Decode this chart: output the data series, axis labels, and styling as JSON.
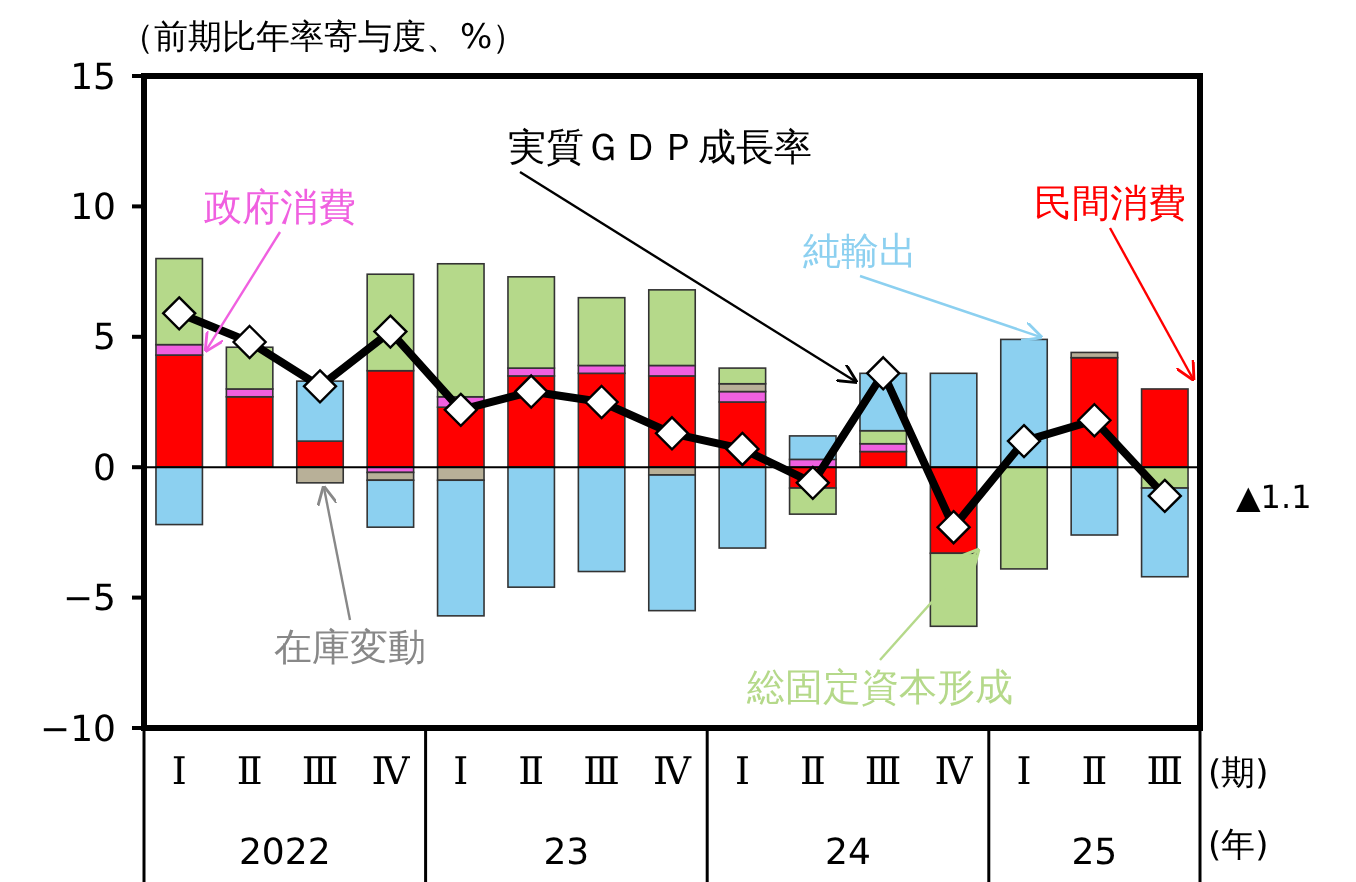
{
  "chart_data": {
    "type": "bar",
    "stacked": true,
    "ylabel": "（前期比年率寄与度、%）",
    "categories": [
      "Ⅰ",
      "Ⅱ",
      "Ⅲ",
      "Ⅳ",
      "Ⅰ",
      "Ⅱ",
      "Ⅲ",
      "Ⅳ",
      "Ⅰ",
      "Ⅱ",
      "Ⅲ",
      "Ⅳ",
      "Ⅰ",
      "Ⅱ",
      "Ⅲ"
    ],
    "series": [
      {
        "name": "民間消費",
        "color": "#ff0000",
        "values": [
          4.3,
          2.7,
          1.0,
          3.7,
          2.3,
          3.5,
          3.6,
          3.5,
          2.5,
          -0.8,
          0.6,
          -3.3,
          0,
          4.2,
          3.0
        ]
      },
      {
        "name": "政府消費",
        "color": "#f060e0",
        "values": [
          0.4,
          0.3,
          0,
          -0.2,
          0.4,
          0.3,
          0.3,
          0.4,
          0.4,
          0.3,
          0.3,
          0,
          0,
          0,
          0
        ]
      },
      {
        "name": "在庫変動",
        "color": "#b8b098",
        "values": [
          0,
          0,
          -0.6,
          -0.3,
          -0.5,
          0,
          0,
          -0.3,
          0.3,
          0,
          0,
          0,
          0,
          0.2,
          0
        ]
      },
      {
        "name": "総固定資本形成",
        "color": "#b5d98a",
        "values": [
          3.3,
          1.6,
          0,
          3.7,
          5.1,
          3.5,
          2.6,
          2.9,
          0.6,
          -1.0,
          0.5,
          -2.8,
          -3.9,
          0,
          -0.8
        ]
      },
      {
        "name": "純輸出",
        "color": "#8cd0f0",
        "values": [
          -2.2,
          0,
          2.3,
          -1.8,
          -5.2,
          -4.6,
          -4.0,
          -5.2,
          -3.1,
          0.9,
          2.2,
          3.6,
          4.9,
          -2.6,
          -3.4
        ]
      },
      {
        "name": "実質ＧＤＰ成長率",
        "type": "line",
        "color": "#000000",
        "marker": "diamond",
        "values": [
          5.9,
          4.8,
          3.1,
          5.2,
          2.2,
          2.9,
          2.5,
          1.3,
          0.7,
          -0.6,
          3.6,
          -2.3,
          1.0,
          1.8,
          -1.1
        ]
      }
    ],
    "ylim": [
      -10,
      15
    ],
    "yticks": [
      -10,
      -5,
      0,
      5,
      10,
      15
    ],
    "annotations": [
      "▲1.1",
      "2022",
      "23",
      "24",
      "25",
      "(期)",
      "(年)"
    ]
  }
}
